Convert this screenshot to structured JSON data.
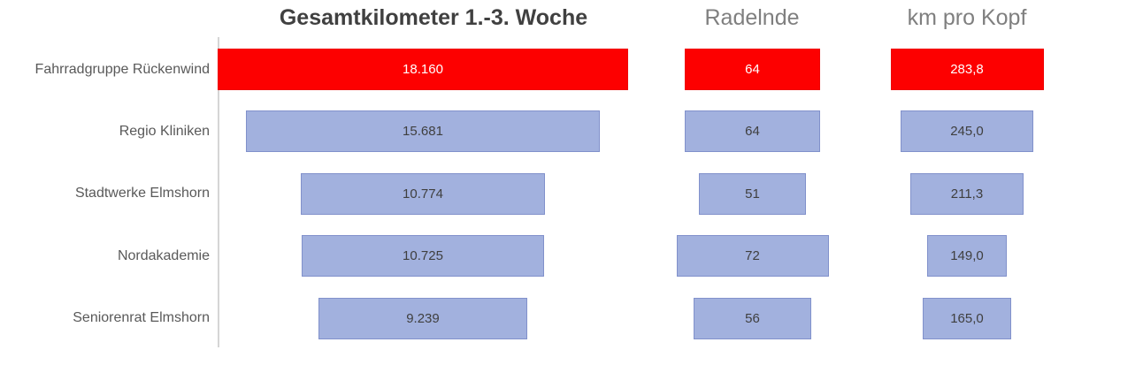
{
  "chart_data": {
    "type": "bar",
    "subtype": "horizontal-centered-bars-3-panels",
    "categories": [
      "Fahrradgruppe Rückenwind",
      "Regio Kliniken",
      "Stadtwerke Elmshorn",
      "Nordakademie",
      "Seniorenrat Elmshorn"
    ],
    "series": [
      {
        "name": "Gesamtkilometer 1.-3. Woche",
        "values": [
          18160,
          15681,
          10774,
          10725,
          9239
        ],
        "labels": [
          "18.160",
          "15.681",
          "10.774",
          "10.725",
          "9.239"
        ]
      },
      {
        "name": "Radelnde",
        "values": [
          64,
          64,
          51,
          72,
          56
        ],
        "labels": [
          "64",
          "64",
          "51",
          "72",
          "56"
        ]
      },
      {
        "name": "km pro Kopf",
        "values": [
          283.8,
          245.0,
          211.3,
          149.0,
          165.0
        ],
        "labels": [
          "283,8",
          "245,0",
          "211,3",
          "149,0",
          "165,0"
        ]
      }
    ],
    "highlight_index": 0,
    "legend": "none",
    "gridlines": false,
    "colors": {
      "highlight_fill": "#fd0000",
      "highlight_border": "#ee0000",
      "bar_fill": "#a2b1de",
      "bar_border": "#8191cb",
      "value_on_bar": "#3f3f3f",
      "value_on_highlight": "#ffffff",
      "category_label": "#595959",
      "title_primary": "#404040",
      "title_secondary": "#7f7f7f",
      "axis_line": "#d5d5d5"
    }
  }
}
